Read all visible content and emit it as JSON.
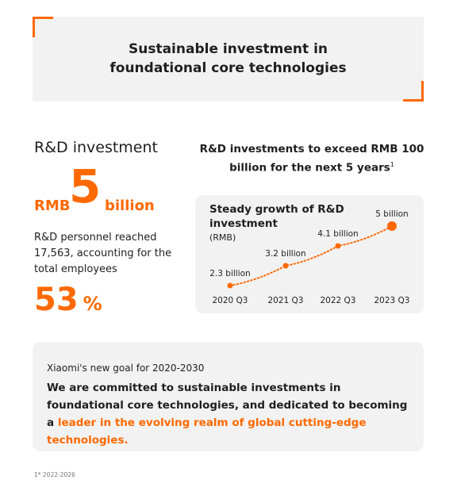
{
  "header": {
    "title_line1": "Sustainable investment in",
    "title_line2": "foundational core technologies"
  },
  "left": {
    "heading": "R&D investment",
    "amount_prefix": "RMB",
    "amount_value": "5",
    "amount_suffix": "billion",
    "personnel_text": "R&D personnel reached 17,563, accounting for the total employees",
    "percent_value": "53",
    "percent_unit": "%"
  },
  "right": {
    "title_line1": "R&D investments to exceed RMB 100",
    "title_line2": "billion for the next 5 years",
    "title_footnote_mark": "1"
  },
  "colors": {
    "accent": "#ff6900",
    "text": "#1f1f1f",
    "panel": "#f2f2f2"
  },
  "chart_data": {
    "type": "line",
    "title": "Steady growth of R&D investment",
    "subtitle": "(RMB)",
    "categories": [
      "2020 Q3",
      "2021 Q3",
      "2022 Q3",
      "2023 Q3"
    ],
    "values": [
      2.3,
      3.2,
      4.1,
      5
    ],
    "data_labels": [
      "2.3 billion",
      "3.2 billion",
      "4.1 billion",
      "5 billion"
    ],
    "line_style": "dotted",
    "color": "#ff6900",
    "grid": false
  },
  "goal": {
    "subtitle": "Xiaomi's new goal for 2020-2030",
    "text_main": "We are committed to sustainable investments in foundational core technologies, and dedicated to becoming a ",
    "text_highlight": "leader in the evolving realm of global cutting-edge technologies."
  },
  "footnote": "1* 2022-2026"
}
